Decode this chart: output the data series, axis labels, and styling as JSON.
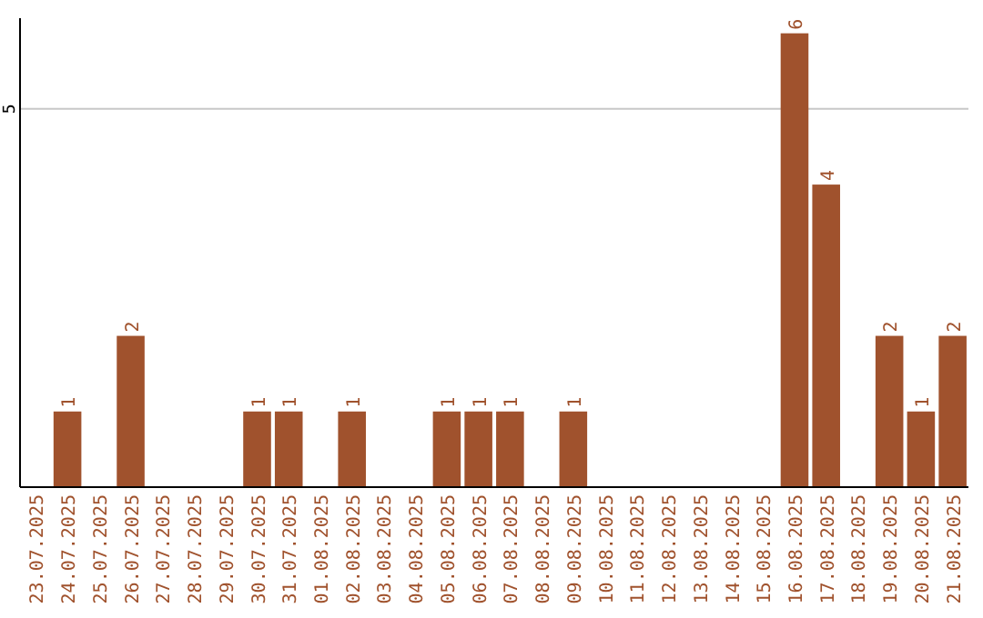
{
  "chart_data": {
    "type": "bar",
    "categories": [
      "23.07.2025",
      "24.07.2025",
      "25.07.2025",
      "26.07.2025",
      "27.07.2025",
      "28.07.2025",
      "29.07.2025",
      "30.07.2025",
      "31.07.2025",
      "01.08.2025",
      "02.08.2025",
      "03.08.2025",
      "04.08.2025",
      "05.08.2025",
      "06.08.2025",
      "07.08.2025",
      "08.08.2025",
      "09.08.2025",
      "10.08.2025",
      "11.08.2025",
      "12.08.2025",
      "13.08.2025",
      "14.08.2025",
      "15.08.2025",
      "16.08.2025",
      "17.08.2025",
      "18.08.2025",
      "19.08.2025",
      "20.08.2025",
      "21.08.2025"
    ],
    "values": [
      0,
      1,
      0,
      2,
      0,
      0,
      0,
      1,
      1,
      0,
      1,
      0,
      0,
      1,
      1,
      1,
      0,
      1,
      0,
      0,
      0,
      0,
      0,
      0,
      6,
      4,
      0,
      2,
      1,
      2
    ],
    "value_labels": [
      null,
      "1",
      null,
      "2",
      null,
      null,
      null,
      "1",
      "1",
      null,
      "1",
      null,
      null,
      "1",
      "1",
      "1",
      null,
      "1",
      null,
      null,
      null,
      null,
      null,
      null,
      "6",
      "4",
      null,
      "2",
      "1",
      "2"
    ],
    "color": "#a0522d",
    "ylim": [
      0,
      6.2
    ],
    "yticks": [
      5
    ],
    "grid": "y"
  }
}
